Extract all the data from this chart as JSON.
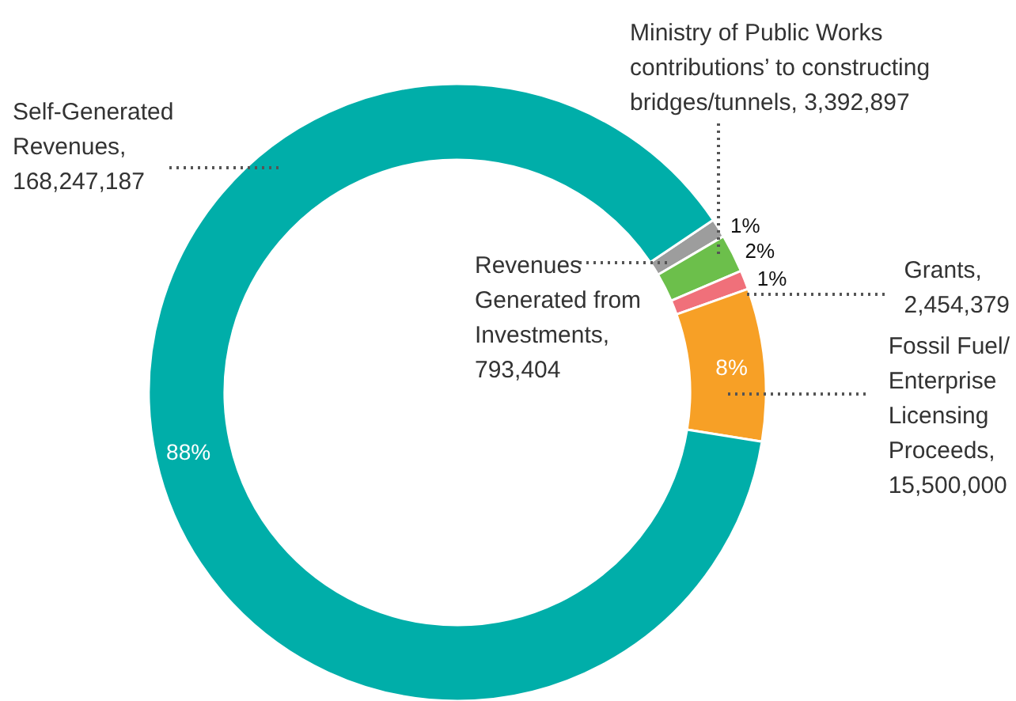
{
  "chart_data": {
    "type": "donut",
    "categories": [
      "Revenues Generated from Investments, 793,404",
      "Ministry of Public Works contributions’ to constructing bridges/tunnels, 3,392,897",
      "Grants, 2,454,379",
      "Fossil Fuel/ Enterprise Licensing Proceeds, 15,500,000",
      "Self-Generated Revenues, 168,247,187"
    ],
    "values": [
      1,
      2,
      1,
      8,
      88
    ],
    "colors": [
      "#9d9d9d",
      "#6cbf4b",
      "#f0707a",
      "#f7a026",
      "#00aea9"
    ],
    "value_labels": [
      "1%",
      "2%",
      "1%",
      "8%",
      "88%"
    ]
  }
}
